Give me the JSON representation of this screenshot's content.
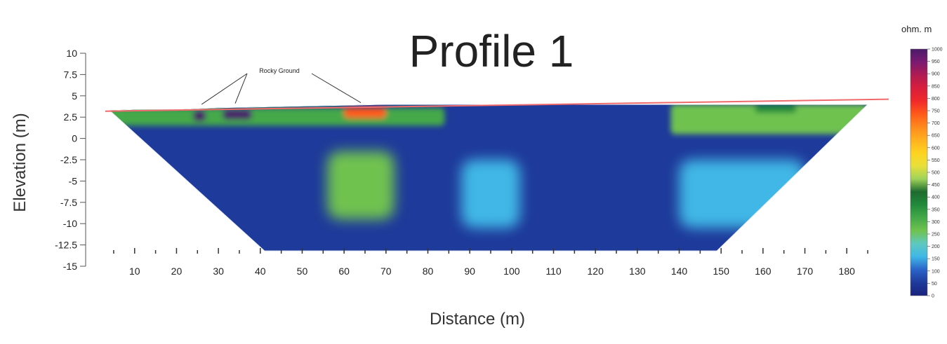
{
  "chart_data": {
    "type": "heatmap",
    "title": "Profile 1",
    "xlabel": "Distance (m)",
    "ylabel": "Elevation (m)",
    "xlim": [
      3,
      187
    ],
    "ylim": [
      -15,
      10
    ],
    "x_ticks": [
      10,
      20,
      30,
      40,
      50,
      60,
      70,
      80,
      90,
      100,
      110,
      120,
      130,
      140,
      150,
      160,
      170,
      180
    ],
    "y_ticks": [
      10,
      7.5,
      5,
      2.5,
      0,
      -2.5,
      -5,
      -7.5,
      -10,
      -12.5,
      -15
    ],
    "y_tick_labels": [
      "10",
      "7.5",
      "5",
      "2.5",
      "0",
      "-2.5",
      "-5",
      "-7.5",
      "-10",
      "-12.5",
      "-15"
    ],
    "colorbar": {
      "unit": "ohm. m",
      "levels": [
        0,
        50,
        100,
        150,
        200,
        250,
        300,
        350,
        400,
        450,
        500,
        550,
        600,
        650,
        700,
        750,
        800,
        850,
        900,
        950,
        1000
      ],
      "colors": [
        "#1a237e",
        "#1e3a9a",
        "#2a63c8",
        "#3fb7e6",
        "#5ec9c0",
        "#6fc24f",
        "#44a948",
        "#228a3c",
        "#1c6b2e",
        "#9fd35a",
        "#e8e03a",
        "#ffd320",
        "#ffb020",
        "#ff8a1c",
        "#ff5a1a",
        "#f0282a",
        "#d81e3c",
        "#b01b52",
        "#7a1a72",
        "#4a1a6a"
      ]
    },
    "section": {
      "surface": [
        [
          4,
          3.3
        ],
        [
          10,
          3.4
        ],
        [
          20,
          3.4
        ],
        [
          30,
          3.6
        ],
        [
          40,
          3.7
        ],
        [
          50,
          3.8
        ],
        [
          60,
          3.9
        ],
        [
          70,
          4.0
        ],
        [
          80,
          4.0
        ],
        [
          90,
          4.0
        ],
        [
          100,
          4.0
        ],
        [
          110,
          4.0
        ],
        [
          120,
          4.0
        ],
        [
          130,
          4.0
        ],
        [
          140,
          4.0
        ],
        [
          150,
          4.0
        ],
        [
          160,
          4.0
        ],
        [
          170,
          4.0
        ],
        [
          185,
          4.0
        ]
      ],
      "bottom_y": -13.2,
      "bottom_x_range": [
        41,
        149
      ],
      "background_resistivity": 50
    },
    "anomalies": [
      {
        "x": [
          56,
          72
        ],
        "y": [
          -9.5,
          -1.5
        ],
        "resistivity": 250
      },
      {
        "x": [
          88,
          102
        ],
        "y": [
          -10.5,
          -2.5
        ],
        "resistivity": 150
      },
      {
        "x": [
          140,
          170
        ],
        "y": [
          -10.5,
          -2.5
        ],
        "resistivity": 180
      },
      {
        "x": [
          138,
          185
        ],
        "y": [
          0.5,
          4.0
        ],
        "resistivity": 250
      },
      {
        "x": [
          3,
          84
        ],
        "y": [
          1.5,
          3.6
        ],
        "resistivity": 300
      },
      {
        "x": [
          24,
          27
        ],
        "y": [
          2.0,
          3.3
        ],
        "resistivity": 1000
      },
      {
        "x": [
          31,
          38
        ],
        "y": [
          2.2,
          3.4
        ],
        "resistivity": 950
      },
      {
        "x": [
          60,
          70
        ],
        "y": [
          2.4,
          3.6
        ],
        "resistivity": 700
      },
      {
        "x": [
          158,
          168
        ],
        "y": [
          3.0,
          4.0
        ],
        "resistivity": 350
      }
    ],
    "ground_line": [
      [
        3,
        3.2
      ],
      [
        190,
        4.6
      ]
    ],
    "annotation": {
      "text": "Rocky Ground",
      "targets": [
        [
          26,
          4.0
        ],
        [
          34,
          4.1
        ],
        [
          64,
          4.2
        ]
      ]
    }
  }
}
